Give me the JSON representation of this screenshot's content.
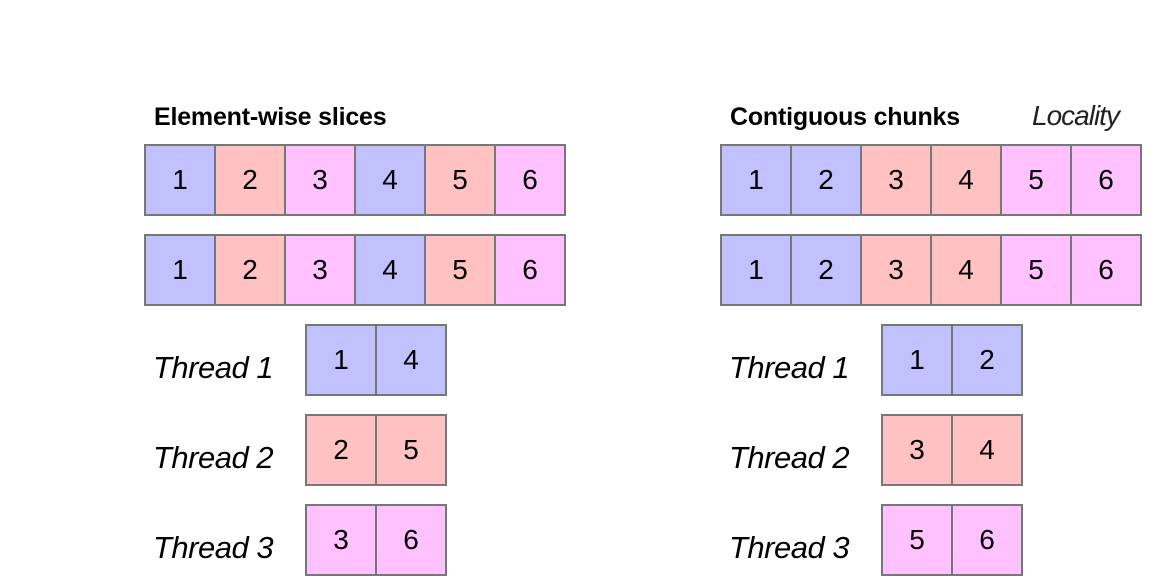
{
  "colors": {
    "blue": "#c1c1ff",
    "red": "#ffc1c1",
    "pink": "#ffc1ff",
    "border": "#777777"
  },
  "panels": [
    {
      "title": "Element-wise slices",
      "subtitle": "",
      "rows": [
        [
          "1",
          "2",
          "3",
          "4",
          "5",
          "6"
        ],
        [
          "1",
          "2",
          "3",
          "4",
          "5",
          "6"
        ]
      ],
      "row_colors": [
        "blue",
        "red",
        "pink",
        "blue",
        "red",
        "pink"
      ],
      "threads": [
        {
          "label": "Thread 1",
          "items": [
            "1",
            "4"
          ],
          "color": "blue"
        },
        {
          "label": "Thread 2",
          "items": [
            "2",
            "5"
          ],
          "color": "red"
        },
        {
          "label": "Thread 3",
          "items": [
            "3",
            "6"
          ],
          "color": "pink"
        }
      ]
    },
    {
      "title": "Contiguous chunks",
      "subtitle": "Locality",
      "rows": [
        [
          "1",
          "2",
          "3",
          "4",
          "5",
          "6"
        ],
        [
          "1",
          "2",
          "3",
          "4",
          "5",
          "6"
        ]
      ],
      "row_colors": [
        "blue",
        "blue",
        "red",
        "red",
        "pink",
        "pink"
      ],
      "threads": [
        {
          "label": "Thread 1",
          "items": [
            "1",
            "2"
          ],
          "color": "blue"
        },
        {
          "label": "Thread 2",
          "items": [
            "3",
            "4"
          ],
          "color": "red"
        },
        {
          "label": "Thread 3",
          "items": [
            "5",
            "6"
          ],
          "color": "pink"
        }
      ]
    }
  ]
}
